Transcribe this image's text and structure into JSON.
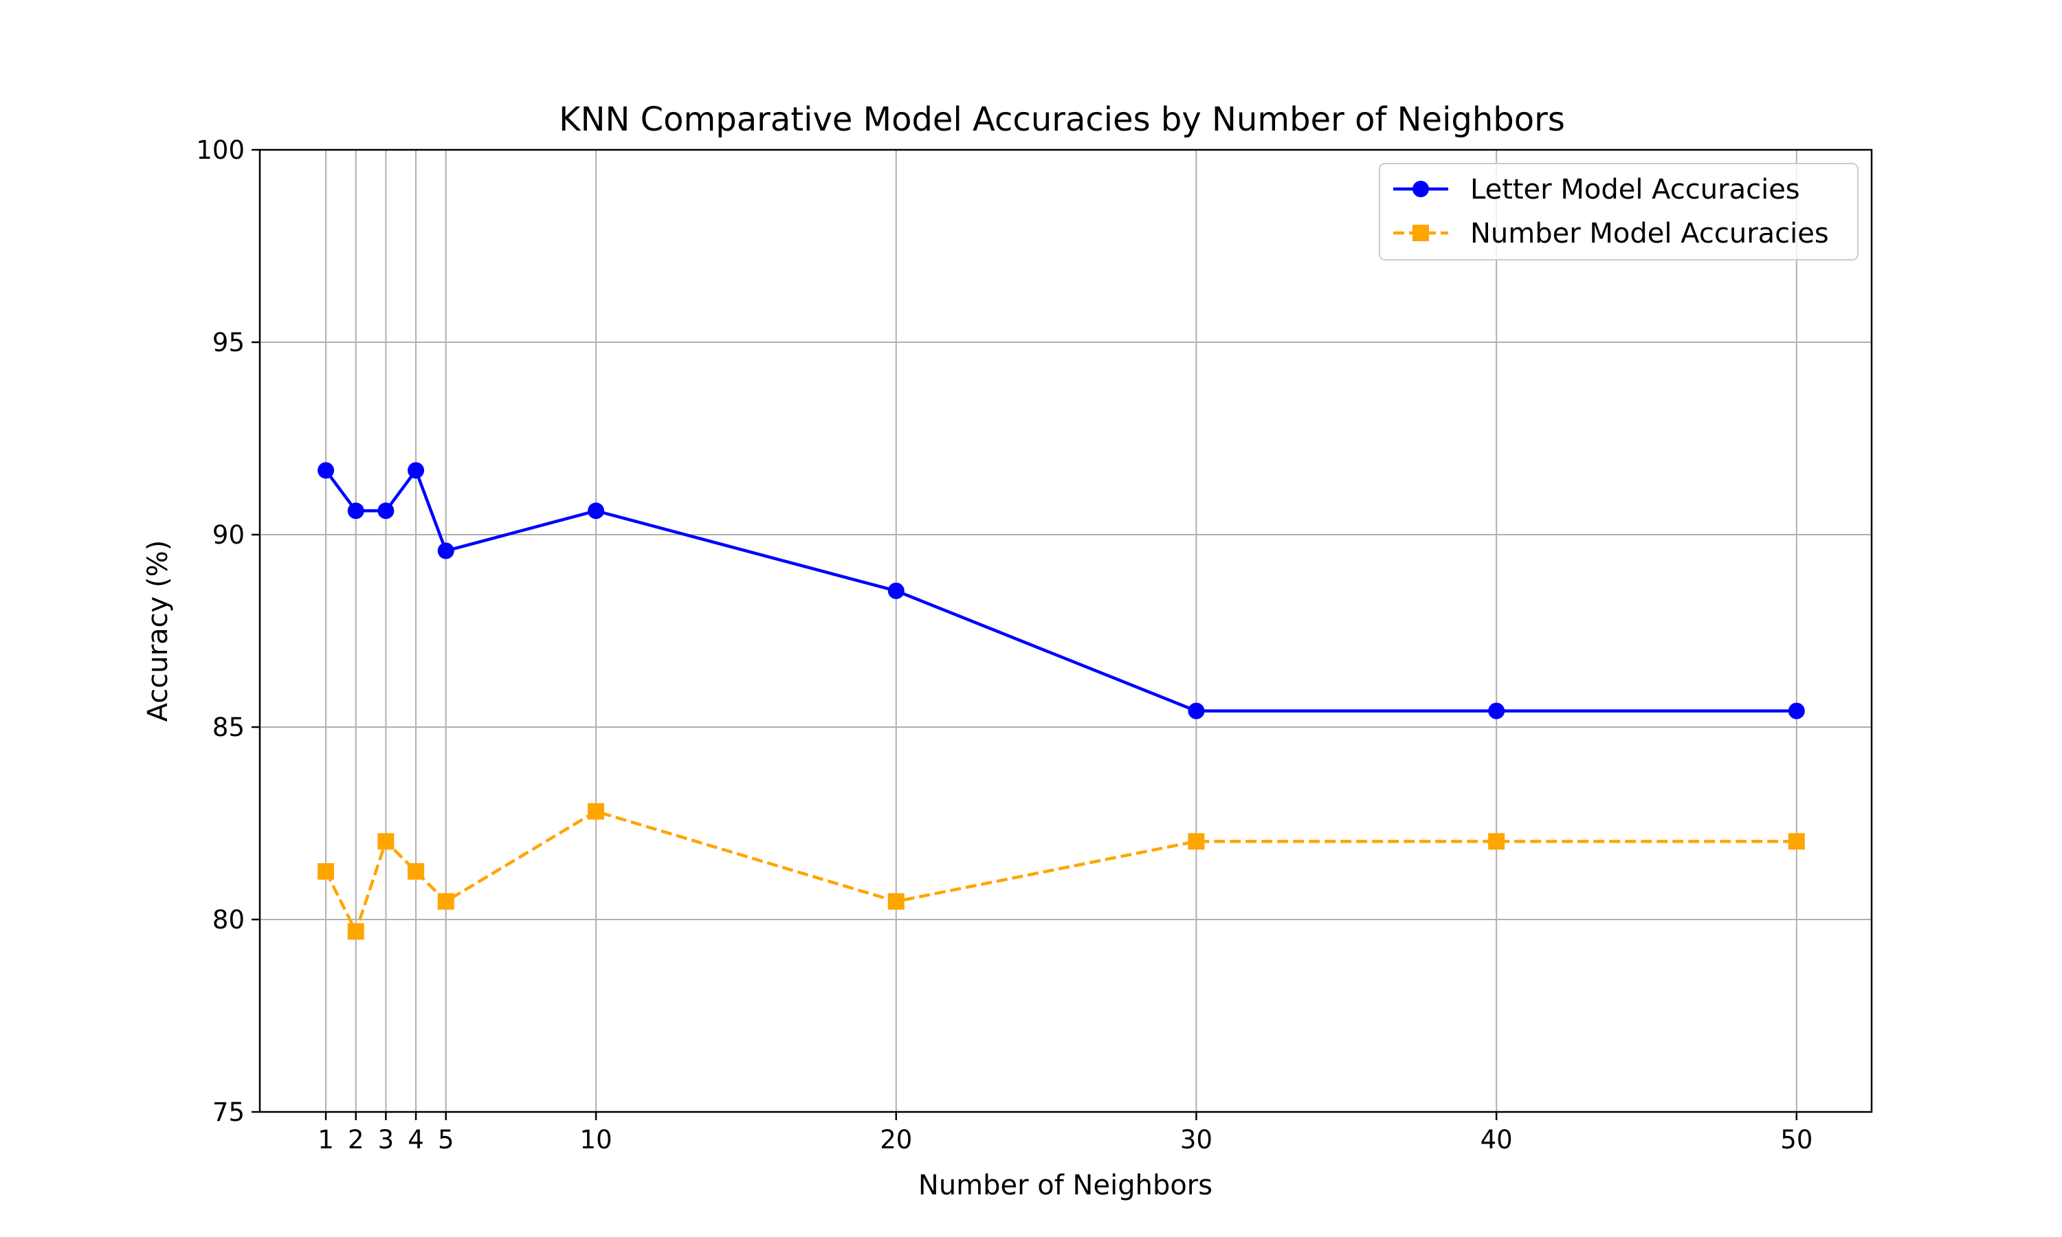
{
  "chart_data": {
    "type": "line",
    "title": "KNN Comparative Model Accuracies by Number of Neighbors",
    "xlabel": "Number of Neighbors",
    "ylabel": "Accuracy (%)",
    "x": [
      1,
      2,
      3,
      4,
      5,
      10,
      20,
      30,
      40,
      50
    ],
    "xticks": [
      1,
      2,
      3,
      4,
      5,
      10,
      20,
      30,
      40,
      50
    ],
    "yticks": [
      75,
      80,
      85,
      90,
      95,
      100
    ],
    "xlim": [
      -1.2,
      52.5
    ],
    "ylim": [
      75,
      100
    ],
    "grid": true,
    "legend_position": "top-right",
    "series": [
      {
        "name": "Letter Model Accuracies",
        "color": "#0000ff",
        "line_style": "solid",
        "marker": "circle",
        "values": [
          91.67,
          90.62,
          90.62,
          91.67,
          89.58,
          90.62,
          88.54,
          85.42,
          85.42,
          85.42
        ]
      },
      {
        "name": "Number Model Accuracies",
        "color": "#ffa500",
        "line_style": "dashed",
        "marker": "square",
        "values": [
          81.25,
          79.69,
          82.03,
          81.25,
          80.47,
          82.81,
          80.47,
          82.03,
          82.03,
          82.03
        ]
      }
    ]
  }
}
